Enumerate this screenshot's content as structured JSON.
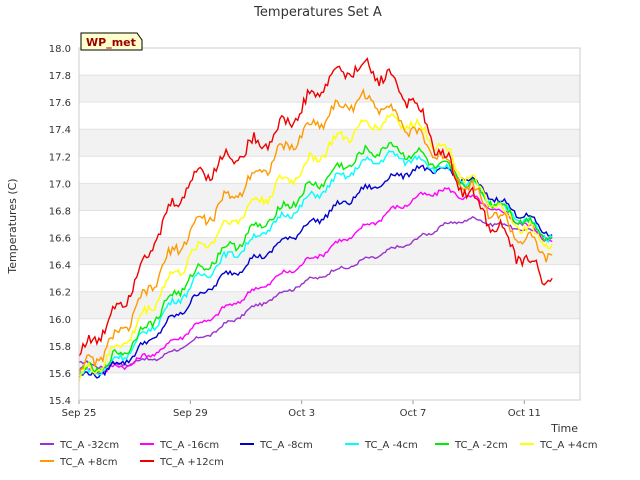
{
  "chart_data": {
    "type": "line",
    "title": "Temperatures Set A",
    "xlabel": "Time",
    "ylabel": "Temperatures (C)",
    "ylim": [
      15.4,
      18.0
    ],
    "xlim": [
      "Sep 25",
      "Oct 13"
    ],
    "x_ticks": [
      "Sep 25",
      "Sep 29",
      "Oct 3",
      "Oct 7",
      "Oct 11"
    ],
    "y_ticks": [
      "15.4",
      "15.6",
      "15.8",
      "16.0",
      "16.2",
      "16.4",
      "16.6",
      "16.8",
      "17.0",
      "17.2",
      "17.4",
      "17.6",
      "17.8",
      "18.0"
    ],
    "grid": "horizontal bands",
    "legend_placement": "bottom",
    "annotation": "WP_met",
    "x_dates": [
      "Sep 25",
      "Sep 26",
      "Sep 27",
      "Sep 28",
      "Sep 29",
      "Sep 30",
      "Oct 1",
      "Oct 2",
      "Oct 3",
      "Oct 4",
      "Oct 5",
      "Oct 6",
      "Oct 7",
      "Oct 8",
      "Oct 9",
      "Oct 10",
      "Oct 11",
      "Oct 12"
    ],
    "series": [
      {
        "name": "TC_A -32cm",
        "color": "#9933cc",
        "values": [
          15.67,
          15.65,
          15.68,
          15.72,
          15.82,
          15.92,
          16.05,
          16.16,
          16.26,
          16.34,
          16.41,
          16.49,
          16.57,
          16.68,
          16.74,
          16.7,
          16.66,
          16.6
        ]
      },
      {
        "name": "TC_A -16cm",
        "color": "#ff00ff",
        "values": [
          15.62,
          15.62,
          15.68,
          15.78,
          15.92,
          16.04,
          16.17,
          16.29,
          16.4,
          16.52,
          16.64,
          16.77,
          16.88,
          16.95,
          16.9,
          16.8,
          16.7,
          16.57
        ]
      },
      {
        "name": "TC_A -8cm",
        "color": "#0000cc",
        "values": [
          15.56,
          15.62,
          15.74,
          15.93,
          16.12,
          16.28,
          16.4,
          16.52,
          16.66,
          16.79,
          16.92,
          17.02,
          17.1,
          17.1,
          17.03,
          16.88,
          16.76,
          16.62
        ]
      },
      {
        "name": "TC_A -4cm",
        "color": "#00ffff",
        "values": [
          15.58,
          15.64,
          15.8,
          16.03,
          16.24,
          16.41,
          16.54,
          16.7,
          16.84,
          16.99,
          17.12,
          17.2,
          17.18,
          17.12,
          17.0,
          16.85,
          16.72,
          16.6
        ]
      },
      {
        "name": "TC_A -2cm",
        "color": "#00ee00",
        "values": [
          15.6,
          15.66,
          15.84,
          16.08,
          16.3,
          16.47,
          16.61,
          16.76,
          16.92,
          17.06,
          17.19,
          17.27,
          17.22,
          17.13,
          17.0,
          16.85,
          16.72,
          16.6
        ]
      },
      {
        "name": "TC_A +4cm",
        "color": "#ffff00",
        "values": [
          15.56,
          15.7,
          15.92,
          16.22,
          16.46,
          16.64,
          16.8,
          16.96,
          17.1,
          17.28,
          17.4,
          17.47,
          17.44,
          17.28,
          17.03,
          16.82,
          16.66,
          16.55
        ]
      },
      {
        "name": "TC_A +8cm",
        "color": "#ff9900",
        "values": [
          15.6,
          15.78,
          16.04,
          16.38,
          16.65,
          16.82,
          17.0,
          17.18,
          17.36,
          17.52,
          17.62,
          17.58,
          17.38,
          17.2,
          16.98,
          16.76,
          16.58,
          16.47
        ]
      },
      {
        "name": "TC_A +12cm",
        "color": "#ee0000",
        "values": [
          15.72,
          15.96,
          16.28,
          16.7,
          17.02,
          17.14,
          17.25,
          17.36,
          17.55,
          17.78,
          17.86,
          17.8,
          17.6,
          17.22,
          16.92,
          16.68,
          16.42,
          16.3
        ]
      }
    ]
  }
}
